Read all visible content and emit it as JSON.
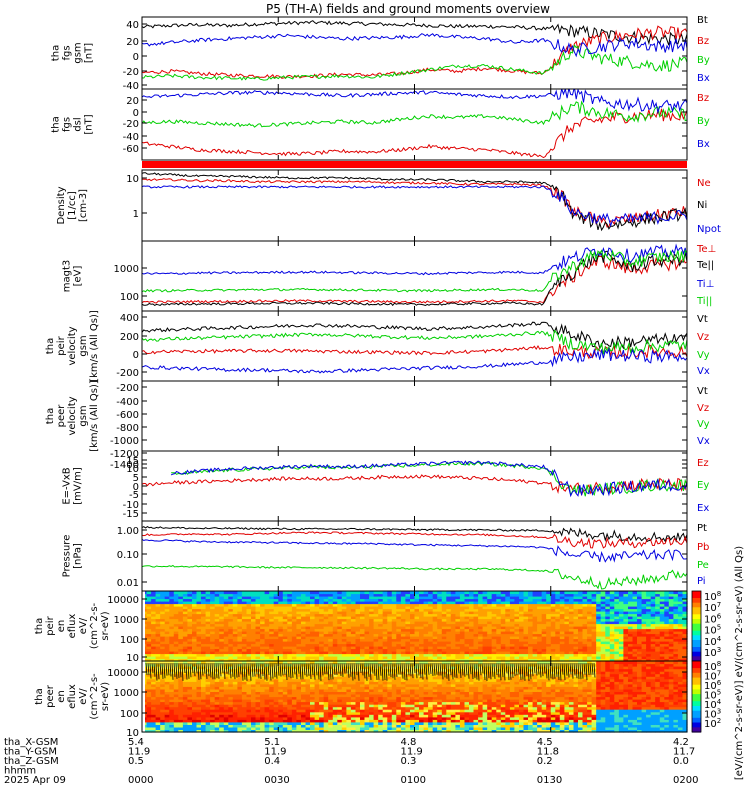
{
  "title": "P5 (TH-A) fields and ground moments overview",
  "colors": {
    "black": "#000000",
    "red": "#e00000",
    "green": "#00d000",
    "blue": "#0000e0",
    "header_bar": "#ff0000"
  },
  "chart_data": [
    {
      "type": "line",
      "panel": "fgs_gsm",
      "ylabel": [
        "tha",
        "fgs",
        "gsm",
        "[nT]"
      ],
      "yticks": [
        "40",
        "20",
        "0",
        "-20",
        "-40"
      ],
      "ylim": [
        -45,
        48
      ],
      "series": [
        {
          "name": "Bt",
          "color": "black",
          "values": [
            35,
            37,
            38,
            37,
            39,
            40,
            41,
            40,
            39,
            38,
            37,
            36,
            36,
            35,
            33,
            30,
            26,
            22,
            20,
            18
          ]
        },
        {
          "name": "Bz",
          "color": "red",
          "values": [
            -24,
            -22,
            -25,
            -27,
            -28,
            -29,
            -28,
            -26,
            -27,
            -25,
            -20,
            -22,
            -18,
            -22,
            -25,
            10,
            20,
            25,
            28,
            26
          ]
        },
        {
          "name": "By",
          "color": "green",
          "values": [
            -30,
            -28,
            -30,
            -31,
            -32,
            -30,
            -29,
            -28,
            -30,
            -25,
            -20,
            -15,
            -15,
            -20,
            -25,
            5,
            -5,
            -10,
            -15,
            -12
          ]
        },
        {
          "name": "Bx",
          "color": "blue",
          "values": [
            12,
            15,
            18,
            20,
            22,
            24,
            22,
            20,
            21,
            22,
            25,
            22,
            20,
            15,
            18,
            5,
            10,
            15,
            10,
            12
          ]
        }
      ]
    },
    {
      "type": "line",
      "panel": "fgs_dsl",
      "ylabel": [
        "tha",
        "fgs",
        "dsl",
        "[nT]"
      ],
      "yticks": [
        "20",
        "0",
        "-20",
        "-40",
        "-60"
      ],
      "ylim": [
        -75,
        30
      ],
      "series": [
        {
          "name": "Bz",
          "color": "red",
          "values": [
            -50,
            -55,
            -60,
            -62,
            -64,
            -66,
            -65,
            -62,
            -63,
            -60,
            -55,
            -58,
            -60,
            -65,
            -70,
            -25,
            -15,
            -10,
            -8,
            -10
          ]
        },
        {
          "name": "By",
          "color": "green",
          "values": [
            -20,
            -18,
            -20,
            -22,
            -24,
            -22,
            -20,
            -18,
            -20,
            -15,
            -10,
            -12,
            -10,
            -15,
            -20,
            5,
            -5,
            -10,
            -5,
            -8
          ]
        },
        {
          "name": "Bx",
          "color": "blue",
          "values": [
            18,
            20,
            22,
            24,
            25,
            24,
            22,
            20,
            22,
            24,
            25,
            22,
            20,
            18,
            20,
            25,
            10,
            8,
            5,
            5
          ]
        }
      ]
    },
    {
      "type": "line",
      "panel": "density",
      "scale": "log",
      "ylabel": [
        "Density",
        "[1/cc]",
        "[cm-3]"
      ],
      "yticks": [
        "10",
        "1"
      ],
      "ylim": [
        0.15,
        15
      ],
      "series": [
        {
          "name": "Ne",
          "color": "red",
          "values": [
            8,
            8,
            7.5,
            7.5,
            7,
            7,
            7,
            7,
            7,
            6.5,
            6.5,
            6,
            6,
            6,
            5.5,
            1,
            0.5,
            0.6,
            0.8,
            1
          ]
        },
        {
          "name": "Ni",
          "color": "black",
          "values": [
            12,
            11,
            10,
            10,
            9.5,
            9,
            9,
            9,
            8.5,
            8,
            8,
            7.5,
            7,
            7,
            6.5,
            0.8,
            0.4,
            0.5,
            0.7,
            0.9
          ]
        },
        {
          "name": "Npot",
          "color": "blue",
          "values": [
            5,
            5,
            5,
            5,
            5,
            5,
            5,
            5,
            5,
            5,
            5,
            5,
            5,
            5,
            5,
            1,
            0.6,
            0.6,
            0.7,
            0.8
          ]
        }
      ]
    },
    {
      "type": "line",
      "panel": "temperature",
      "scale": "log",
      "ylabel": [
        "magt3",
        "[eV]"
      ],
      "yticks": [
        "1000",
        "100"
      ],
      "ylim": [
        40,
        3000
      ],
      "series": [
        {
          "name": "Te⊥",
          "color": "red",
          "values": [
            70,
            70,
            72,
            72,
            74,
            75,
            75,
            73,
            72,
            70,
            70,
            72,
            74,
            75,
            70,
            300,
            900,
            500,
            700,
            800
          ]
        },
        {
          "name": "Te||",
          "color": "black",
          "values": [
            60,
            60,
            62,
            62,
            64,
            64,
            65,
            63,
            62,
            60,
            60,
            62,
            64,
            65,
            60,
            400,
            1200,
            600,
            900,
            1000
          ]
        },
        {
          "name": "Ti⊥",
          "color": "blue",
          "values": [
            400,
            400,
            420,
            420,
            430,
            440,
            440,
            430,
            420,
            410,
            400,
            420,
            430,
            440,
            420,
            1000,
            1800,
            1200,
            1500,
            1600
          ]
        },
        {
          "name": "Ti||",
          "color": "green",
          "values": [
            140,
            140,
            145,
            145,
            150,
            150,
            150,
            148,
            145,
            140,
            140,
            145,
            150,
            150,
            140,
            600,
            1400,
            800,
            1100,
            1200
          ]
        }
      ]
    },
    {
      "type": "line",
      "panel": "peir_velocity",
      "ylabel": [
        "tha",
        "peir",
        "velocity",
        "gsm",
        "[km/s (All Qs)]"
      ],
      "yticks": [
        "400",
        "200",
        "0",
        "-200"
      ],
      "ylim": [
        -300,
        450
      ],
      "series": [
        {
          "name": "Vt",
          "color": "black",
          "values": [
            240,
            250,
            260,
            270,
            280,
            290,
            300,
            290,
            280,
            270,
            260,
            270,
            280,
            300,
            320,
            200,
            100,
            120,
            140,
            150
          ]
        },
        {
          "name": "Vz",
          "color": "red",
          "values": [
            10,
            15,
            20,
            20,
            25,
            25,
            20,
            15,
            10,
            5,
            0,
            10,
            20,
            40,
            60,
            20,
            0,
            10,
            20,
            10
          ]
        },
        {
          "name": "Vy",
          "color": "green",
          "values": [
            140,
            150,
            160,
            170,
            180,
            190,
            200,
            190,
            180,
            170,
            160,
            170,
            180,
            200,
            220,
            100,
            50,
            60,
            80,
            90
          ]
        },
        {
          "name": "Vx",
          "color": "blue",
          "values": [
            -150,
            -160,
            -170,
            -180,
            -180,
            -190,
            -200,
            -190,
            -180,
            -170,
            -160,
            -150,
            -140,
            -120,
            -100,
            -50,
            -20,
            -30,
            -40,
            -30
          ]
        }
      ]
    },
    {
      "type": "line",
      "panel": "peer_velocity",
      "ylabel": [
        "tha",
        "peer",
        "velocity",
        "gsm",
        "[km/s (All Qs)]"
      ],
      "yticks": [
        "-200",
        "-400",
        "-600",
        "-800",
        "-1000",
        "-1200",
        "-1400"
      ],
      "ylim": [
        -1550,
        -100
      ],
      "series": [
        {
          "name": "Vt",
          "color": "black",
          "values": []
        },
        {
          "name": "Vz",
          "color": "red",
          "values": []
        },
        {
          "name": "Vy",
          "color": "green",
          "values": []
        },
        {
          "name": "Vx",
          "color": "blue",
          "values": []
        }
      ]
    },
    {
      "type": "line",
      "panel": "efield",
      "ylabel": [
        "E=-VxB",
        "[mV/m]"
      ],
      "yticks": [
        "15",
        "10",
        "5",
        "0",
        "-5",
        "-10",
        "-15"
      ],
      "ylim": [
        -17,
        16
      ],
      "series": [
        {
          "name": "Ez",
          "color": "red",
          "values": [
            0,
            1,
            1.5,
            2,
            2.5,
            3,
            3,
            3,
            3.5,
            4,
            4,
            3.5,
            3,
            2,
            1,
            -2,
            -1,
            0,
            0.5,
            0
          ]
        },
        {
          "name": "Ey",
          "color": "green",
          "values": [
            null,
            5,
            6,
            7,
            7.5,
            8,
            8.5,
            8,
            8.5,
            9,
            9.5,
            10,
            10,
            9,
            8,
            -3,
            -2,
            -1,
            0,
            0
          ]
        },
        {
          "name": "Ex",
          "color": "blue",
          "values": [
            null,
            5.5,
            6.5,
            7.5,
            8,
            8.5,
            9,
            8.5,
            9,
            9.5,
            10,
            10.5,
            10.5,
            9.5,
            8.5,
            -3,
            -2,
            -1,
            0,
            0
          ]
        }
      ]
    },
    {
      "type": "line",
      "panel": "pressure",
      "scale": "log",
      "ylabel": [
        "Pressure",
        "[nPa]"
      ],
      "yticks": [
        "1.00",
        "0.10",
        "0.01"
      ],
      "ylim": [
        0.007,
        1.8
      ],
      "series": [
        {
          "name": "Pt",
          "color": "black",
          "values": [
            1.1,
            1.05,
            1.0,
            1.0,
            0.98,
            0.96,
            0.95,
            0.95,
            0.94,
            0.92,
            0.9,
            0.9,
            0.88,
            0.86,
            0.85,
            0.7,
            0.6,
            0.55,
            0.5,
            0.5
          ]
        },
        {
          "name": "Pb",
          "color": "red",
          "values": [
            0.6,
            0.62,
            0.65,
            0.62,
            0.66,
            0.7,
            0.72,
            0.7,
            0.68,
            0.66,
            0.64,
            0.62,
            0.6,
            0.55,
            0.5,
            0.35,
            0.3,
            0.32,
            0.35,
            0.38
          ]
        },
        {
          "name": "Pe",
          "color": "green",
          "values": [
            0.05,
            0.05,
            0.048,
            0.048,
            0.046,
            0.045,
            0.045,
            0.044,
            0.043,
            0.042,
            0.04,
            0.04,
            0.04,
            0.038,
            0.035,
            0.02,
            0.012,
            0.015,
            0.02,
            0.03
          ]
        },
        {
          "name": "Pi",
          "color": "blue",
          "values": [
            0.4,
            0.38,
            0.35,
            0.34,
            0.33,
            0.32,
            0.31,
            0.3,
            0.3,
            0.28,
            0.27,
            0.26,
            0.25,
            0.24,
            0.22,
            0.12,
            0.1,
            0.11,
            0.12,
            0.13
          ]
        }
      ]
    },
    {
      "type": "heatmap",
      "panel": "peir_en_eflux",
      "scale": "log",
      "ylabel": [
        "tha",
        "peir",
        "en",
        "eflux",
        "eV/",
        "(cm^2-s-",
        "sr-eV)"
      ],
      "yticks": [
        "10000",
        "1000",
        "100",
        "10"
      ],
      "ylim": [
        7,
        16000
      ],
      "colorbar_ticks": [
        "10^8",
        "10^7",
        "10^6",
        "10^5",
        "10^4",
        "10^3"
      ]
    },
    {
      "type": "heatmap",
      "panel": "peer_en_eflux",
      "scale": "log",
      "ylabel": [
        "tha",
        "peer",
        "en",
        "eflux",
        "eV/",
        "(cm^2-s-",
        "sr-eV)"
      ],
      "yticks": [
        "10000",
        "1000",
        "100",
        "10"
      ],
      "ylim": [
        7,
        16000
      ],
      "colorbar_ticks": [
        "10^8",
        "10^7",
        "10^6",
        "10^5",
        "10^4",
        "10^3",
        "10^2"
      ]
    }
  ],
  "colorbar_label": "[eV/(cm^2-s-sr-eV)] eV/(cm^2-s-sr-eV) (All Qs)",
  "time_axis": {
    "row_labels": [
      "tha_X-GSM",
      "tha_Y-GSM",
      "tha_Z-GSM",
      "hhmm",
      "2025 Apr 09"
    ],
    "columns": [
      {
        "x": "5.4",
        "y": "11.9",
        "z": "0.5",
        "t": "0000"
      },
      {
        "x": "5.1",
        "y": "11.9",
        "z": "0.4",
        "t": "0030"
      },
      {
        "x": "4.8",
        "y": "11.9",
        "z": "0.3",
        "t": "0100"
      },
      {
        "x": "4.5",
        "y": "11.8",
        "z": "0.2",
        "t": "0130"
      },
      {
        "x": "4.2",
        "y": "11.7",
        "z": "0.0",
        "t": "0200"
      }
    ]
  }
}
